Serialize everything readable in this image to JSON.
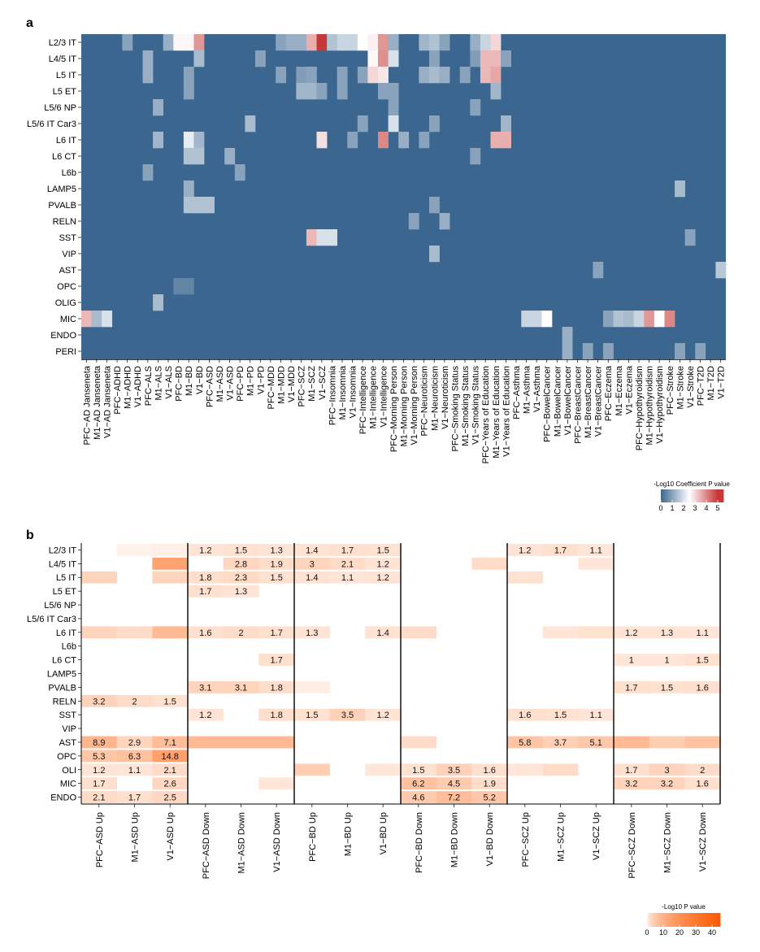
{
  "colors": {
    "a_low": "#3b6690",
    "a_mid": "#ffffff",
    "a_high": "#c83737",
    "b_zero": "#ffffff",
    "b_high": "#ff5a00",
    "separator": "#000000"
  },
  "chart_data": [
    {
      "type": "heatmap",
      "panel_label": "a",
      "rows": [
        "L2/3 IT",
        "L4/5 IT",
        "L5 IT",
        "L5 ET",
        "L5/6 NP",
        "L5/6 IT Car3",
        "L6 IT",
        "L6 CT",
        "L6b",
        "LAMP5",
        "PVALB",
        "RELN",
        "SST",
        "VIP",
        "AST",
        "OPC",
        "OLIG",
        "MIC",
        "ENDO",
        "PERI"
      ],
      "columns": [
        "PFC−AD Janseneta",
        "M1−AD Janseneta",
        "V1−AD Janseneta",
        "PFC−ADHD",
        "M1−ADHD",
        "V1−ADHD",
        "PFC−ALS",
        "M1−ALS",
        "V1−ALS",
        "PFC−BD",
        "M1−BD",
        "V1−BD",
        "PFC−ASD",
        "M1−ASD",
        "V1−ASD",
        "PFC−PD",
        "M1−PD",
        "V1−PD",
        "PFC−MDD",
        "M1−MDD",
        "V1−MDD",
        "PFC−SCZ",
        "M1−SCZ",
        "V1−SCZ",
        "PFC−Insomnia",
        "M1−Insomnia",
        "V1−Insomnia",
        "PFC−Intelligence",
        "M1−Intelligence",
        "V1−Intelligence",
        "PFC−Morning Person",
        "M1−Morning Person",
        "V1−Morning Person",
        "PFC−Neuroticism",
        "M1−Neuroticism",
        "V1−Neuroticism",
        "PFC−Smoking Status",
        "M1−Smoking Status",
        "V1−Smoking Status",
        "PFC−Years of Education",
        "M1−Years of Education",
        "V1−Years of Education",
        "PFC−Asthma",
        "M1−Asthma",
        "V1−Asthma",
        "PFC−BowelCancer",
        "M1−BowelCancer",
        "V1−BowelCancer",
        "PFC−BreastCancer",
        "M1−BreastCancer",
        "V1−BreastCancer",
        "PFC−Eczema",
        "M1−Eczema",
        "V1−Eczema",
        "PFC−Hypothyroidism",
        "M1−Hypothyroidism",
        "V1−Hypothyroidism",
        "PFC−Stroke",
        "M1−Stroke",
        "V1−Stroke",
        "PFC−T2D",
        "M1−T2D",
        "V1−T2D"
      ],
      "default_value": 0,
      "cells": [
        [
          0,
          4,
          1.0
        ],
        [
          0,
          8,
          1.2
        ],
        [
          0,
          9,
          2.6
        ],
        [
          0,
          10,
          2.6
        ],
        [
          0,
          11,
          3.8
        ],
        [
          0,
          19,
          1.0
        ],
        [
          0,
          20,
          1.2
        ],
        [
          0,
          21,
          1.2
        ],
        [
          0,
          22,
          3.5
        ],
        [
          0,
          23,
          5.0
        ],
        [
          0,
          24,
          1.5
        ],
        [
          0,
          25,
          1.8
        ],
        [
          0,
          26,
          1.8
        ],
        [
          0,
          27,
          2.5
        ],
        [
          0,
          28,
          2.7
        ],
        [
          0,
          29,
          3.8
        ],
        [
          0,
          30,
          1.2
        ],
        [
          0,
          33,
          1.3
        ],
        [
          0,
          34,
          1.5
        ],
        [
          0,
          35,
          1.0
        ],
        [
          0,
          38,
          1.2
        ],
        [
          0,
          39,
          1.8
        ],
        [
          0,
          40,
          3.0
        ],
        [
          1,
          6,
          1.2
        ],
        [
          1,
          11,
          1.4
        ],
        [
          1,
          17,
          1.0
        ],
        [
          1,
          28,
          2.6
        ],
        [
          1,
          29,
          3.9
        ],
        [
          1,
          30,
          2.0
        ],
        [
          1,
          34,
          1.0
        ],
        [
          1,
          38,
          0.9
        ],
        [
          1,
          39,
          3.4
        ],
        [
          1,
          40,
          3.4
        ],
        [
          1,
          41,
          1.0
        ],
        [
          2,
          6,
          1.2
        ],
        [
          2,
          10,
          1.0
        ],
        [
          2,
          19,
          1.0
        ],
        [
          2,
          21,
          0.9
        ],
        [
          2,
          22,
          1.0
        ],
        [
          2,
          25,
          1.0
        ],
        [
          2,
          27,
          1.0
        ],
        [
          2,
          28,
          3.0
        ],
        [
          2,
          29,
          2.8
        ],
        [
          2,
          33,
          1.2
        ],
        [
          2,
          34,
          1.4
        ],
        [
          2,
          35,
          1.2
        ],
        [
          2,
          37,
          1.0
        ],
        [
          2,
          39,
          3.4
        ],
        [
          2,
          40,
          3.6
        ],
        [
          3,
          10,
          1.0
        ],
        [
          3,
          21,
          1.3
        ],
        [
          3,
          22,
          1.3
        ],
        [
          3,
          23,
          1.0
        ],
        [
          3,
          25,
          1.0
        ],
        [
          3,
          29,
          1.0
        ],
        [
          3,
          30,
          1.0
        ],
        [
          3,
          40,
          1.3
        ],
        [
          4,
          7,
          1.2
        ],
        [
          4,
          30,
          1.0
        ],
        [
          4,
          38,
          1.0
        ],
        [
          5,
          16,
          1.4
        ],
        [
          5,
          27,
          1.0
        ],
        [
          5,
          30,
          2.0
        ],
        [
          5,
          34,
          1.0
        ],
        [
          5,
          41,
          1.3
        ],
        [
          6,
          7,
          1.3
        ],
        [
          6,
          10,
          2.2
        ],
        [
          6,
          11,
          1.3
        ],
        [
          6,
          23,
          2.9
        ],
        [
          6,
          26,
          1.0
        ],
        [
          6,
          29,
          4.0
        ],
        [
          6,
          31,
          1.2
        ],
        [
          6,
          33,
          1.0
        ],
        [
          6,
          40,
          3.5
        ],
        [
          6,
          41,
          3.5
        ],
        [
          7,
          10,
          1.5
        ],
        [
          7,
          11,
          1.5
        ],
        [
          7,
          14,
          1.2
        ],
        [
          7,
          38,
          1.0
        ],
        [
          8,
          6,
          1.0
        ],
        [
          8,
          15,
          1.0
        ],
        [
          9,
          10,
          1.2
        ],
        [
          9,
          58,
          1.4
        ],
        [
          10,
          10,
          1.5
        ],
        [
          10,
          11,
          1.5
        ],
        [
          10,
          12,
          1.5
        ],
        [
          10,
          34,
          1.0
        ],
        [
          11,
          32,
          1.0
        ],
        [
          11,
          35,
          1.2
        ],
        [
          12,
          22,
          3.4
        ],
        [
          12,
          23,
          2.0
        ],
        [
          12,
          24,
          2.0
        ],
        [
          12,
          59,
          1.0
        ],
        [
          13,
          34,
          1.4
        ],
        [
          14,
          50,
          1.0
        ],
        [
          14,
          62,
          1.6
        ],
        [
          15,
          9,
          0.5
        ],
        [
          15,
          10,
          0.5
        ],
        [
          16,
          7,
          1.4
        ],
        [
          17,
          0,
          3.4
        ],
        [
          17,
          1,
          1.4
        ],
        [
          17,
          2,
          2.0
        ],
        [
          17,
          43,
          1.8
        ],
        [
          17,
          44,
          1.8
        ],
        [
          17,
          45,
          2.5
        ],
        [
          17,
          51,
          1.0
        ],
        [
          17,
          52,
          1.5
        ],
        [
          17,
          53,
          1.4
        ],
        [
          17,
          54,
          1.8
        ],
        [
          17,
          55,
          3.8
        ],
        [
          17,
          56,
          2.5
        ],
        [
          17,
          57,
          4.0
        ],
        [
          18,
          47,
          1.2
        ],
        [
          19,
          47,
          1.2
        ],
        [
          19,
          49,
          1.0
        ],
        [
          19,
          51,
          1.0
        ],
        [
          19,
          58,
          1.0
        ],
        [
          19,
          60,
          1.0
        ]
      ],
      "legend": {
        "title": "-Log10 Coefficient P value",
        "ticks": [
          0,
          1,
          2,
          3,
          4,
          5
        ],
        "range": [
          0,
          5.5
        ]
      }
    },
    {
      "type": "heatmap",
      "panel_label": "b",
      "rows": [
        "L2/3 IT",
        "L4/5 IT",
        "L5 IT",
        "L5 ET",
        "L5/6 NP",
        "L5/6 IT Car3",
        "L6 IT",
        "L6b",
        "L6 CT",
        "LAMP5",
        "PVALB",
        "RELN",
        "SST",
        "VIP",
        "AST",
        "OPC",
        "OLI",
        "MIC",
        "ENDO"
      ],
      "columns": [
        "PFC−ASD Up",
        "M1−ASD Up",
        "V1−ASD Up",
        "PFC−ASD Down",
        "M1−ASD Down",
        "V1−ASD Down",
        "PFC−BD Up",
        "M1−BD Up",
        "V1−BD Up",
        "PFC−BD Down",
        "M1−BD Down",
        "V1−BD Down",
        "PFC−SCZ Up",
        "M1−SCZ Up",
        "V1−SCZ Up",
        "PFC−SCZ Down",
        "M1−SCZ Down",
        "V1−SCZ Down"
      ],
      "group_size": 3,
      "default_value": 0,
      "labeled_cells": [
        [
          0,
          3,
          "1.2"
        ],
        [
          0,
          4,
          "1.5"
        ],
        [
          0,
          5,
          "1.3"
        ],
        [
          0,
          6,
          "1.4"
        ],
        [
          0,
          7,
          "1.7"
        ],
        [
          0,
          8,
          "1.5"
        ],
        [
          0,
          12,
          "1.2"
        ],
        [
          0,
          13,
          "1.7"
        ],
        [
          0,
          14,
          "1.1"
        ],
        [
          1,
          4,
          "2.8"
        ],
        [
          1,
          5,
          "1.9"
        ],
        [
          1,
          6,
          "3"
        ],
        [
          1,
          7,
          "2.1"
        ],
        [
          1,
          8,
          "1.2"
        ],
        [
          2,
          3,
          "1.8"
        ],
        [
          2,
          4,
          "2.3"
        ],
        [
          2,
          5,
          "1.5"
        ],
        [
          2,
          6,
          "1.4"
        ],
        [
          2,
          7,
          "1.1"
        ],
        [
          2,
          8,
          "1.2"
        ],
        [
          3,
          3,
          "1.7"
        ],
        [
          3,
          4,
          "1.3"
        ],
        [
          6,
          3,
          "1.6"
        ],
        [
          6,
          4,
          "2"
        ],
        [
          6,
          5,
          "1.7"
        ],
        [
          6,
          6,
          "1.3"
        ],
        [
          6,
          8,
          "1.4"
        ],
        [
          6,
          15,
          "1.2"
        ],
        [
          6,
          16,
          "1.3"
        ],
        [
          6,
          17,
          "1.1"
        ],
        [
          8,
          5,
          "1.7"
        ],
        [
          8,
          15,
          "1"
        ],
        [
          8,
          16,
          "1"
        ],
        [
          8,
          17,
          "1.5"
        ],
        [
          10,
          3,
          "3.1"
        ],
        [
          10,
          4,
          "3.1"
        ],
        [
          10,
          5,
          "1.8"
        ],
        [
          10,
          15,
          "1.7"
        ],
        [
          10,
          16,
          "1.5"
        ],
        [
          10,
          17,
          "1.6"
        ],
        [
          11,
          0,
          "3.2"
        ],
        [
          11,
          1,
          "2"
        ],
        [
          11,
          2,
          "1.5"
        ],
        [
          12,
          3,
          "1.2"
        ],
        [
          12,
          5,
          "1.8"
        ],
        [
          12,
          6,
          "1.5"
        ],
        [
          12,
          7,
          "3.5"
        ],
        [
          12,
          8,
          "1.2"
        ],
        [
          12,
          12,
          "1.6"
        ],
        [
          12,
          13,
          "1.5"
        ],
        [
          12,
          14,
          "1.1"
        ],
        [
          14,
          0,
          "8.9"
        ],
        [
          14,
          1,
          "2.9"
        ],
        [
          14,
          2,
          "7.1"
        ],
        [
          14,
          12,
          "5.8"
        ],
        [
          14,
          13,
          "3.7"
        ],
        [
          14,
          14,
          "5.1"
        ],
        [
          15,
          0,
          "5.3"
        ],
        [
          15,
          1,
          "6.3"
        ],
        [
          15,
          2,
          "14.8"
        ],
        [
          16,
          0,
          "1.2"
        ],
        [
          16,
          1,
          "1.1"
        ],
        [
          16,
          2,
          "2.1"
        ],
        [
          16,
          9,
          "1.5"
        ],
        [
          16,
          10,
          "3.5"
        ],
        [
          16,
          11,
          "1.6"
        ],
        [
          16,
          15,
          "1.7"
        ],
        [
          16,
          16,
          "3"
        ],
        [
          16,
          17,
          "2"
        ],
        [
          17,
          0,
          "1.7"
        ],
        [
          17,
          2,
          "2.6"
        ],
        [
          17,
          9,
          "6.2"
        ],
        [
          17,
          10,
          "4.5"
        ],
        [
          17,
          11,
          "1.9"
        ],
        [
          17,
          15,
          "3.2"
        ],
        [
          17,
          16,
          "3.2"
        ],
        [
          17,
          17,
          "1.6"
        ],
        [
          18,
          0,
          "2.1"
        ],
        [
          18,
          1,
          "1.7"
        ],
        [
          18,
          2,
          "2.5"
        ],
        [
          18,
          9,
          "4.6"
        ],
        [
          18,
          10,
          "7.2"
        ],
        [
          18,
          11,
          "5.2"
        ]
      ],
      "unlabeled_cells": [
        [
          0,
          1,
          0.3
        ],
        [
          0,
          2,
          0.4
        ],
        [
          1,
          2,
          14
        ],
        [
          1,
          11,
          2
        ],
        [
          1,
          14,
          1
        ],
        [
          2,
          0,
          3
        ],
        [
          2,
          2,
          3
        ],
        [
          2,
          12,
          1.5
        ],
        [
          6,
          0,
          3
        ],
        [
          6,
          1,
          2
        ],
        [
          6,
          2,
          8
        ],
        [
          6,
          9,
          2
        ],
        [
          6,
          13,
          1
        ],
        [
          6,
          14,
          1.5
        ],
        [
          10,
          6,
          0.5
        ],
        [
          14,
          3,
          8
        ],
        [
          14,
          4,
          8
        ],
        [
          14,
          5,
          8
        ],
        [
          14,
          9,
          2
        ],
        [
          14,
          15,
          8
        ],
        [
          14,
          16,
          4
        ],
        [
          14,
          17,
          6
        ],
        [
          16,
          6,
          4
        ],
        [
          16,
          8,
          1
        ],
        [
          16,
          12,
          1
        ],
        [
          16,
          13,
          2
        ],
        [
          17,
          5,
          1
        ]
      ],
      "legend": {
        "title": "-Log10 P value",
        "ticks": [
          0,
          10,
          20,
          30,
          40
        ],
        "range": [
          0,
          45
        ]
      }
    }
  ]
}
